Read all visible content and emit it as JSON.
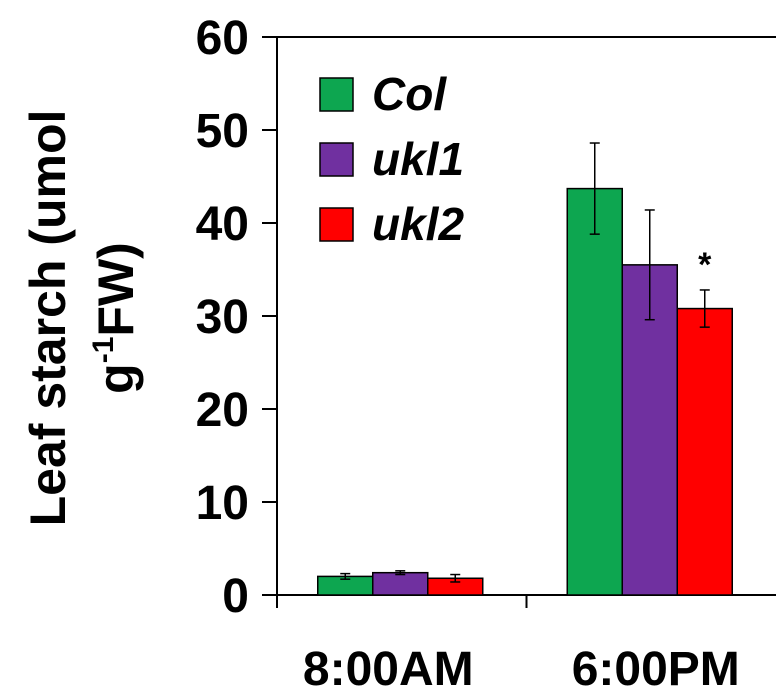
{
  "chart_data": {
    "type": "bar",
    "categories": [
      "8:00AM",
      "6:00PM"
    ],
    "series": [
      {
        "name": "Col",
        "color": "#0da650",
        "values": [
          2.0,
          43.7
        ],
        "errors": [
          0.3,
          4.9
        ]
      },
      {
        "name": "ukl1",
        "color": "#7030a0",
        "values": [
          2.4,
          35.5
        ],
        "errors": [
          0.2,
          5.9
        ]
      },
      {
        "name": "ukl2",
        "color": "#ff0000",
        "values": [
          1.8,
          30.8
        ],
        "errors": [
          0.4,
          2.0
        ]
      }
    ],
    "ylabel_line1": "Leaf starch (umol",
    "ylabel_line2_pre": "g",
    "ylabel_line2_sup": "-1",
    "ylabel_line2_post": "FW)",
    "ylim": [
      0,
      60
    ],
    "yticks": [
      "0",
      "10",
      "20",
      "30",
      "40",
      "50",
      "60"
    ],
    "grid": false,
    "legend_position": "top-left",
    "annotations": [
      {
        "text": "*",
        "category": "6:00PM",
        "series": "ukl2"
      }
    ]
  }
}
